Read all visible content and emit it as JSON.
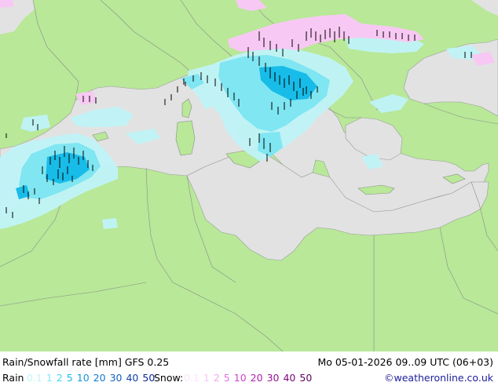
{
  "legend": {
    "title": "Rain/Snowfall rate [mm] GFS 0.25",
    "datetime": "Mo 05-01-2026 09..09 UTC (06+03)",
    "rain_label": "Rain",
    "rain_scale": [
      {
        "label": "0.1",
        "color": "#c0f4f8"
      },
      {
        "label": "1",
        "color": "#7fe6f2"
      },
      {
        "label": "2",
        "color": "#3fd8f0"
      },
      {
        "label": "5",
        "color": "#18bce8"
      },
      {
        "label": "10",
        "color": "#1696dc"
      },
      {
        "label": "20",
        "color": "#1478cc"
      },
      {
        "label": "30",
        "color": "#1060b8"
      },
      {
        "label": "40",
        "color": "#1040a8"
      },
      {
        "label": "50",
        "color": "#102898"
      }
    ],
    "snow_label": "Snow:",
    "snow_scale": [
      {
        "label": "0.1",
        "color": "#fde4fb"
      },
      {
        "label": "1",
        "color": "#f8c8f4"
      },
      {
        "label": "2",
        "color": "#f0a8ec"
      },
      {
        "label": "5",
        "color": "#e070e0"
      },
      {
        "label": "10",
        "color": "#cc44cc"
      },
      {
        "label": "20",
        "color": "#b020b0"
      },
      {
        "label": "30",
        "color": "#941094"
      },
      {
        "label": "40",
        "color": "#780878"
      },
      {
        "label": "50",
        "color": "#600060"
      }
    ],
    "credit": "©weatheronline.co.uk"
  },
  "colors": {
    "sea": "#e2e2e2",
    "land": "#b8e898",
    "border": "#8c8c8c",
    "light_rain": "#c0f4f8",
    "moderate_rain": "#7fe6f2",
    "heavy_rain": "#18bce8",
    "light_snow": "#f8c8f4"
  }
}
